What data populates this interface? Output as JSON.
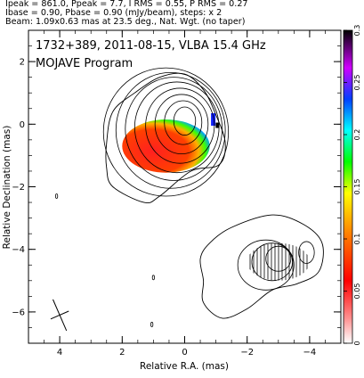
{
  "header": {
    "line1": "Ipeak = 861.0, Ppeak = 7.7, I RMS = 0.55, P RMS = 0.27",
    "line2": "Ibase = 0.90, Pbase = 0.90 (mJy/beam), steps: x 2",
    "line3": "Beam: 1.09x0.63 mas at 23.5 deg., Nat. Wgt. (no taper)"
  },
  "chart_data": {
    "type": "contour-map",
    "title": "1732+389, 2011-08-15, VLBA 15.4 GHz",
    "subtitle": "MOJAVE Program",
    "xlabel": "Relative R.A. (mas)",
    "ylabel": "Relative Declination (mas)",
    "xlim": [
      5.0,
      -5.0
    ],
    "ylim": [
      -7.0,
      3.0
    ],
    "x_ticks": [
      4,
      2,
      0,
      -2,
      -4
    ],
    "x_tick_labels": [
      "4",
      "2",
      "0",
      "−2",
      "−4"
    ],
    "y_ticks": [
      2,
      0,
      -2,
      -4,
      -6
    ],
    "y_tick_labels": [
      "2",
      "0",
      "−2",
      "−4",
      "−6"
    ],
    "colorbar": {
      "range": [
        0,
        0.3
      ],
      "ticks": [
        0,
        0.05,
        0.1,
        0.15,
        0.2,
        0.25,
        0.3
      ],
      "tick_labels": [
        "0",
        "0.05",
        "0.1",
        "0.15",
        "0.2",
        "0.25",
        "0.3"
      ]
    },
    "contour_levels_mjy": [
      0.9,
      1.8,
      3.6,
      7.2,
      14.4,
      28.8,
      57.6,
      115.2,
      230.4,
      460.8
    ],
    "core": {
      "center": [
        0.0,
        0.0
      ],
      "contours": [
        {
          "rx": 0.35,
          "ry": 0.45
        },
        {
          "rx": 0.6,
          "ry": 0.7
        },
        {
          "rx": 0.85,
          "ry": 0.95
        },
        {
          "rx": 1.1,
          "ry": 1.2
        },
        {
          "rx": 1.35,
          "ry": 1.45
        },
        {
          "rx": 1.55,
          "ry": 1.65
        },
        {
          "rx": 1.75,
          "ry": 1.85
        },
        {
          "rx": 2.0,
          "ry": 2.05
        }
      ],
      "contour_centers": [
        [
          0.0,
          0.1
        ],
        [
          0.05,
          0.05
        ],
        [
          0.1,
          0.0
        ],
        [
          0.15,
          -0.05
        ],
        [
          0.25,
          -0.1
        ],
        [
          0.35,
          -0.15
        ],
        [
          0.45,
          -0.2
        ],
        [
          0.6,
          -0.25
        ]
      ],
      "outer_contour_points": [
        [
          2.5,
          -0.6
        ],
        [
          2.3,
          0.4
        ],
        [
          1.6,
          1.0
        ],
        [
          0.8,
          1.5
        ],
        [
          0.0,
          1.6
        ],
        [
          -0.6,
          1.1
        ],
        [
          -1.0,
          0.3
        ],
        [
          -1.3,
          -0.6
        ],
        [
          -1.1,
          -1.3
        ],
        [
          -0.2,
          -1.5
        ],
        [
          0.8,
          -2.3
        ],
        [
          1.3,
          -2.5
        ],
        [
          2.3,
          -2.0
        ],
        [
          2.5,
          -1.4
        ]
      ]
    },
    "jet_region": {
      "outer_contour_points": [
        [
          -0.5,
          -4.3
        ],
        [
          -0.8,
          -3.8
        ],
        [
          -1.5,
          -3.3
        ],
        [
          -2.8,
          -2.9
        ],
        [
          -3.8,
          -3.2
        ],
        [
          -4.4,
          -3.8
        ],
        [
          -4.3,
          -4.7
        ],
        [
          -3.6,
          -5.1
        ],
        [
          -2.8,
          -5.3
        ],
        [
          -2.0,
          -5.9
        ],
        [
          -1.2,
          -6.2
        ],
        [
          -0.6,
          -5.7
        ],
        [
          -0.6,
          -5.0
        ]
      ],
      "inner_contours": [
        {
          "cx": -2.6,
          "cy": -4.5,
          "rx": 0.9,
          "ry": 0.8
        },
        {
          "cx": -2.8,
          "cy": -4.4,
          "rx": 0.65,
          "ry": 0.6
        },
        {
          "cx": -3.0,
          "cy": -4.3,
          "rx": 0.4,
          "ry": 0.4
        },
        {
          "cx": -3.9,
          "cy": -4.1,
          "rx": 0.25,
          "ry": 0.35
        }
      ],
      "vector_region": {
        "cx": -3.0,
        "cy": -4.4,
        "rx": 1.0,
        "ry": 0.6
      }
    },
    "polarization_patch": {
      "cx": 0.6,
      "cy": -0.7,
      "rx": 1.4,
      "ry": 0.85,
      "gradient_to": [
        1.0,
        -1.7
      ]
    },
    "minor_features": [
      {
        "x": 4.1,
        "y": -2.3
      },
      {
        "x": 1.05,
        "y": -6.4
      },
      {
        "x": 1.0,
        "y": -4.9
      }
    ],
    "beam": {
      "x": 4.0,
      "y": -6.1,
      "major": 1.09,
      "minor": 0.63,
      "pa_deg": 23.5
    }
  }
}
